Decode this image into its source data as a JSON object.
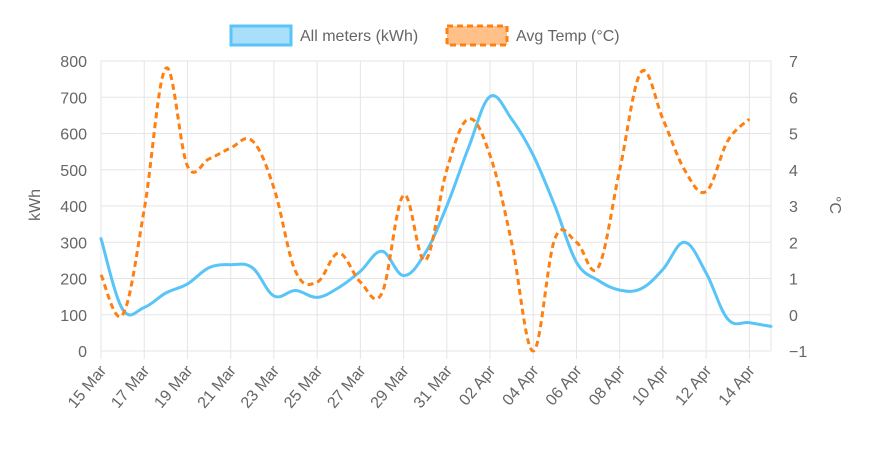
{
  "colors": {
    "meters_line": "#58c4f7",
    "meters_fill": "#a9dffb",
    "temp_line": "#ff8012",
    "temp_fill": "#ffc08a",
    "grid": "#e5e5e5",
    "text": "#666666"
  },
  "chart_data": {
    "type": "line",
    "legend_position": "top",
    "grid": true,
    "x_tick_labels": [
      "15 Mar",
      "17 Mar",
      "19 Mar",
      "21 Mar",
      "23 Mar",
      "25 Mar",
      "27 Mar",
      "29 Mar",
      "31 Mar",
      "02 Apr",
      "04 Apr",
      "06 Apr",
      "08 Apr",
      "10 Apr",
      "12 Apr",
      "14 Apr"
    ],
    "y_left": {
      "label": "kWh",
      "min": 0,
      "max": 800,
      "ticks": [
        "0",
        "100",
        "200",
        "300",
        "400",
        "500",
        "600",
        "700",
        "800"
      ]
    },
    "y_right": {
      "label": "°C",
      "min": -1,
      "max": 7,
      "ticks": [
        "−1",
        "0",
        "1",
        "2",
        "3",
        "4",
        "5",
        "6",
        "7"
      ]
    },
    "series": [
      {
        "name": "All meters (kWh)",
        "axis": "left",
        "style": "solid",
        "points": [
          [
            "2023-03-15",
            310
          ],
          [
            "2023-03-16",
            115
          ],
          [
            "2023-03-17",
            120
          ],
          [
            "2023-03-18",
            160
          ],
          [
            "2023-03-19",
            185
          ],
          [
            "2023-03-20",
            230
          ],
          [
            "2023-03-21",
            238
          ],
          [
            "2023-03-22",
            230
          ],
          [
            "2023-03-23",
            152
          ],
          [
            "2023-03-24",
            167
          ],
          [
            "2023-03-25",
            148
          ],
          [
            "2023-03-26",
            175
          ],
          [
            "2023-03-27",
            220
          ],
          [
            "2023-03-28",
            275
          ],
          [
            "2023-03-29",
            208
          ],
          [
            "2023-03-30",
            270
          ],
          [
            "2023-03-31",
            400
          ],
          [
            "2023-04-01",
            560
          ],
          [
            "2023-04-02",
            702
          ],
          [
            "2023-04-03",
            640
          ],
          [
            "2023-04-04",
            540
          ],
          [
            "2023-04-05",
            400
          ],
          [
            "2023-04-06",
            245
          ],
          [
            "2023-04-07",
            195
          ],
          [
            "2023-04-08",
            168
          ],
          [
            "2023-04-09",
            172
          ],
          [
            "2023-04-10",
            225
          ],
          [
            "2023-04-11",
            300
          ],
          [
            "2023-04-12",
            215
          ],
          [
            "2023-04-13",
            88
          ],
          [
            "2023-04-14",
            78
          ],
          [
            "2023-04-15",
            68
          ]
        ]
      },
      {
        "name": "Avg Temp (°C)",
        "axis": "right",
        "style": "dashed",
        "points": [
          [
            "2023-03-15",
            1.1
          ],
          [
            "2023-03-16",
            0.0
          ],
          [
            "2023-03-17",
            2.9
          ],
          [
            "2023-03-18",
            6.8
          ],
          [
            "2023-03-19",
            4.1
          ],
          [
            "2023-03-20",
            4.3
          ],
          [
            "2023-03-21",
            4.6
          ],
          [
            "2023-03-22",
            4.8
          ],
          [
            "2023-03-23",
            3.5
          ],
          [
            "2023-03-24",
            1.2
          ],
          [
            "2023-03-25",
            0.9
          ],
          [
            "2023-03-26",
            1.7
          ],
          [
            "2023-03-27",
            0.9
          ],
          [
            "2023-03-28",
            0.6
          ],
          [
            "2023-03-29",
            3.3
          ],
          [
            "2023-03-30",
            1.5
          ],
          [
            "2023-03-31",
            4.0
          ],
          [
            "2023-04-01",
            5.4
          ],
          [
            "2023-04-02",
            4.4
          ],
          [
            "2023-04-03",
            2.0
          ],
          [
            "2023-04-04",
            -1.0
          ],
          [
            "2023-04-05",
            2.1
          ],
          [
            "2023-04-06",
            2.0
          ],
          [
            "2023-04-07",
            1.3
          ],
          [
            "2023-04-08",
            4.0
          ],
          [
            "2023-04-09",
            6.7
          ],
          [
            "2023-04-10",
            5.4
          ],
          [
            "2023-04-11",
            4.0
          ],
          [
            "2023-04-12",
            3.4
          ],
          [
            "2023-04-13",
            4.8
          ],
          [
            "2023-04-14",
            5.4
          ]
        ]
      }
    ]
  }
}
